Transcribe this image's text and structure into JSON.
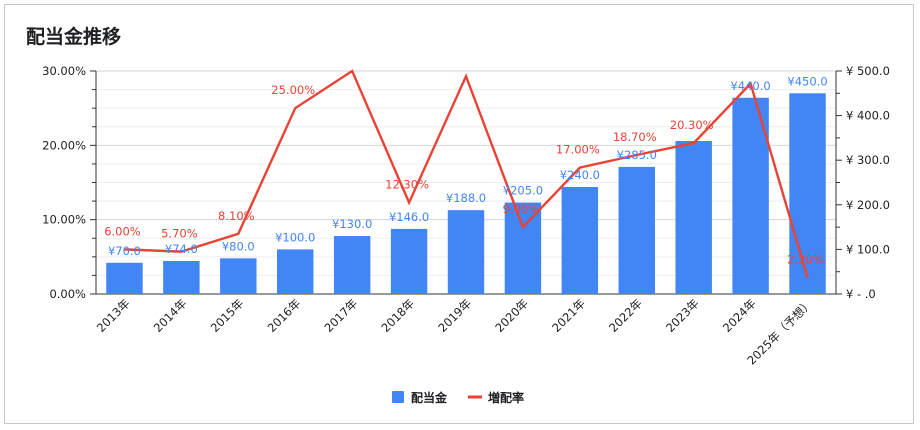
{
  "chart_data": {
    "type": "bar",
    "title": "配当金推移",
    "categories": [
      "2013年",
      "2014年",
      "2015年",
      "2016年",
      "2017年",
      "2018年",
      "2019年",
      "2020年",
      "2021年",
      "2022年",
      "2023年",
      "2024年",
      "2025年（予想）"
    ],
    "series": [
      {
        "name": "配当金",
        "type": "bar",
        "axis": "right",
        "values": [
          70,
          74,
          80,
          100,
          130,
          146,
          188,
          205,
          240,
          285,
          343,
          440,
          450
        ],
        "labels": [
          "¥70.0",
          "¥74.0",
          "¥80.0",
          "¥100.0",
          "¥130.0",
          "¥146.0",
          "¥188.0",
          "¥205.0",
          "¥240.0",
          "¥285.0",
          "",
          "¥440.0",
          "¥450.0"
        ]
      },
      {
        "name": "増配率",
        "type": "line",
        "axis": "left",
        "values": [
          6.0,
          5.7,
          8.1,
          25.0,
          30.0,
          12.3,
          29.3,
          9.0,
          17.0,
          18.7,
          20.3,
          28.3,
          2.2
        ],
        "labels": [
          "6.00%",
          "5.70%",
          "8.10%",
          "25.00%",
          "",
          "12.30%",
          "",
          "9.00%",
          "17.00%",
          "18.70%",
          "20.30%",
          "",
          "2.20%"
        ]
      }
    ],
    "left_axis": {
      "ticks": [
        "30.00%",
        "20.00%",
        "10.00%",
        "0.00%"
      ],
      "range": [
        0,
        30
      ]
    },
    "right_axis": {
      "ticks": [
        "¥ 500.0",
        "¥ 400.0",
        "¥ 300.0",
        "¥ 200.0",
        "¥ 100.0",
        "¥ -  .0"
      ],
      "range": [
        0,
        500
      ]
    },
    "grid": true,
    "legend_position": "bottom",
    "colors": {
      "bar": "#4285f4",
      "line": "#ea4335",
      "grid": "#e0e0e0"
    }
  }
}
